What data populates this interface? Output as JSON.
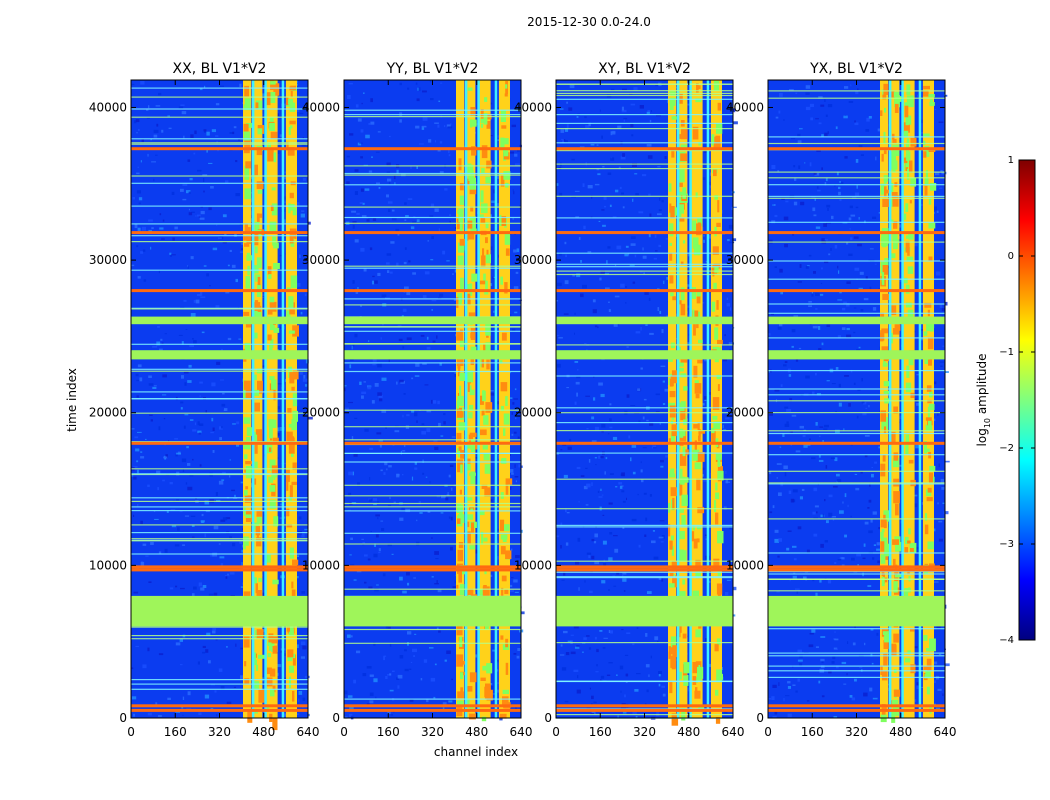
{
  "figure_title": "2015-12-30 0.0-24.0",
  "colors": {
    "background": "#ffffff",
    "gray_band": "#9ff55a",
    "orange_row": "#ff6a10",
    "jet_stops": [
      "#00007f",
      "#0000ff",
      "#007fff",
      "#00ffff",
      "#7fff7f",
      "#ffff00",
      "#ff7f00",
      "#ff0000",
      "#7f0000"
    ]
  },
  "chart_data": {
    "type": "heatmap",
    "title": "2015-12-30 0.0-24.0",
    "xlabel": "channel index",
    "ylabel": "time index",
    "xlim": [
      0,
      640
    ],
    "ylim": [
      0,
      41800
    ],
    "x_ticks": [
      "0",
      "160",
      "320",
      "480",
      "640"
    ],
    "y_ticks": [
      "0",
      "10000",
      "20000",
      "30000",
      "40000"
    ],
    "x_tick_values": [
      0,
      160,
      320,
      480,
      640
    ],
    "y_tick_values": [
      0,
      10000,
      20000,
      30000,
      40000
    ],
    "panels": [
      {
        "title": "XX, BL V1*V2"
      },
      {
        "title": "YY, BL V1*V2"
      },
      {
        "title": "XY, BL V1*V2"
      },
      {
        "title": "YX, BL V1*V2"
      }
    ],
    "high_amplitude_channel_ranges": [
      [
        405,
        435
      ],
      [
        440,
        475
      ],
      [
        490,
        530
      ],
      [
        560,
        600
      ]
    ],
    "masked_time_ranges": [
      [
        6000,
        8000
      ],
      [
        23500,
        24100
      ],
      [
        25800,
        26300
      ]
    ],
    "bright_time_rows": [
      500,
      800,
      9700,
      9900,
      18000,
      28000,
      31800,
      37300
    ],
    "colorbar": {
      "label": "log",
      "label_sub": "10",
      "label_suffix": " amplitude",
      "range": [
        -4,
        1
      ],
      "ticks": [
        "1",
        "0",
        "−1",
        "−2",
        "−3",
        "−4"
      ],
      "tick_values": [
        1,
        0,
        -1,
        -2,
        -3,
        -4
      ],
      "colormap": "jet"
    }
  }
}
